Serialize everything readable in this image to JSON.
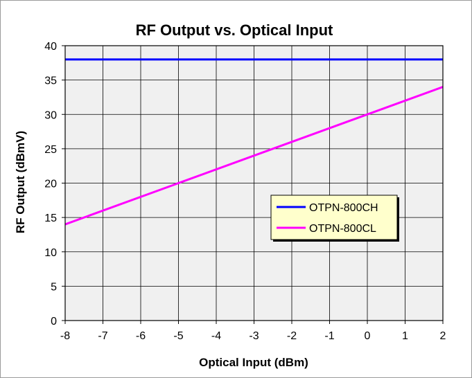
{
  "chart_data": {
    "type": "line",
    "title": "RF Output vs. Optical Input",
    "xlabel": "Optical Input (dBm)",
    "ylabel": "RF Output (dBmV)",
    "xlim": [
      -8,
      2
    ],
    "ylim": [
      0,
      40
    ],
    "xticks": [
      "-8",
      "-7",
      "-6",
      "-5",
      "-4",
      "-3",
      "-2",
      "-1",
      "0",
      "1",
      "2"
    ],
    "yticks": [
      "0",
      "5",
      "10",
      "15",
      "20",
      "25",
      "30",
      "35",
      "40"
    ],
    "grid": true,
    "legend_position": "center-right",
    "plot_background": "#f0f0f0",
    "legend_background": "#ffffcc",
    "series": [
      {
        "name": "OTPN-800CH",
        "color": "#0000ff",
        "x": [
          -8,
          2
        ],
        "y": [
          38,
          38
        ]
      },
      {
        "name": "OTPN-800CL",
        "color": "#ff00ff",
        "x": [
          -8,
          2
        ],
        "y": [
          14,
          34
        ]
      }
    ]
  }
}
